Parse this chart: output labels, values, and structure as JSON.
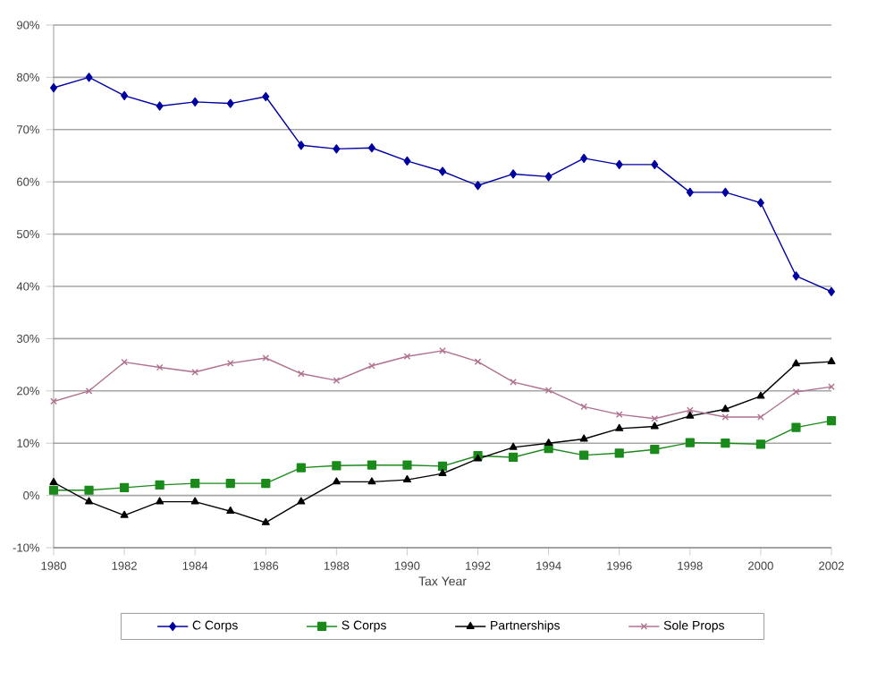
{
  "chart_data": {
    "type": "line",
    "xlabel": "Tax Year",
    "x": [
      1980,
      1981,
      1982,
      1983,
      1984,
      1985,
      1986,
      1987,
      1988,
      1989,
      1990,
      1991,
      1992,
      1993,
      1994,
      1995,
      1996,
      1997,
      1998,
      1999,
      2000,
      2001,
      2002
    ],
    "series": [
      {
        "name": "C Corps",
        "color": "#0000a0",
        "marker": "diamond",
        "values": [
          78,
          80,
          76.5,
          74.5,
          75.3,
          75,
          76.3,
          67,
          66.3,
          66.5,
          64,
          62,
          59.3,
          61.5,
          61,
          64.5,
          63.3,
          63.3,
          58,
          58,
          56,
          42,
          39
        ]
      },
      {
        "name": "S Corps",
        "color": "#1a8a1a",
        "marker": "square",
        "values": [
          1,
          1,
          1.5,
          2,
          2.3,
          2.3,
          2.3,
          5.3,
          5.7,
          5.8,
          5.8,
          5.6,
          7.6,
          7.3,
          9,
          7.7,
          8.1,
          8.8,
          10.1,
          10,
          9.8,
          13,
          14.3
        ]
      },
      {
        "name": "Partnerships",
        "color": "#000000",
        "marker": "triangle",
        "values": [
          2.5,
          -1.2,
          -3.8,
          -1.2,
          -1.2,
          -3,
          -5.2,
          -1.2,
          2.6,
          2.6,
          3,
          4.2,
          7,
          9.2,
          10,
          10.8,
          12.8,
          13.2,
          15.2,
          16.5,
          19,
          25.2,
          25.6
        ]
      },
      {
        "name": "Sole Props",
        "color": "#b07090",
        "marker": "cross",
        "values": [
          18,
          20,
          25.5,
          24.5,
          23.6,
          25.3,
          26.3,
          23.3,
          22,
          24.8,
          26.6,
          27.7,
          25.6,
          21.7,
          20.1,
          17,
          15.5,
          14.7,
          16.3,
          15,
          15,
          19.8,
          20.8
        ]
      }
    ],
    "xlim": [
      1980,
      2002
    ],
    "xticks": [
      1980,
      1982,
      1984,
      1986,
      1988,
      1990,
      1992,
      1994,
      1996,
      1998,
      2000,
      2002
    ],
    "ylim": [
      -10,
      90
    ],
    "yticks": [
      {
        "value": -10,
        "label": "-10%"
      },
      {
        "value": 0,
        "label": "0%"
      },
      {
        "value": 10,
        "label": "10%"
      },
      {
        "value": 20,
        "label": "20%"
      },
      {
        "value": 30,
        "label": "30%"
      },
      {
        "value": 40,
        "label": "40%"
      },
      {
        "value": 50,
        "label": "50%"
      },
      {
        "value": 60,
        "label": "60%"
      },
      {
        "value": 70,
        "label": "70%"
      },
      {
        "value": 80,
        "label": "80%"
      },
      {
        "value": 90,
        "label": "90%"
      }
    ],
    "grid": "y",
    "legend": "bottom",
    "line_style": "solid"
  }
}
